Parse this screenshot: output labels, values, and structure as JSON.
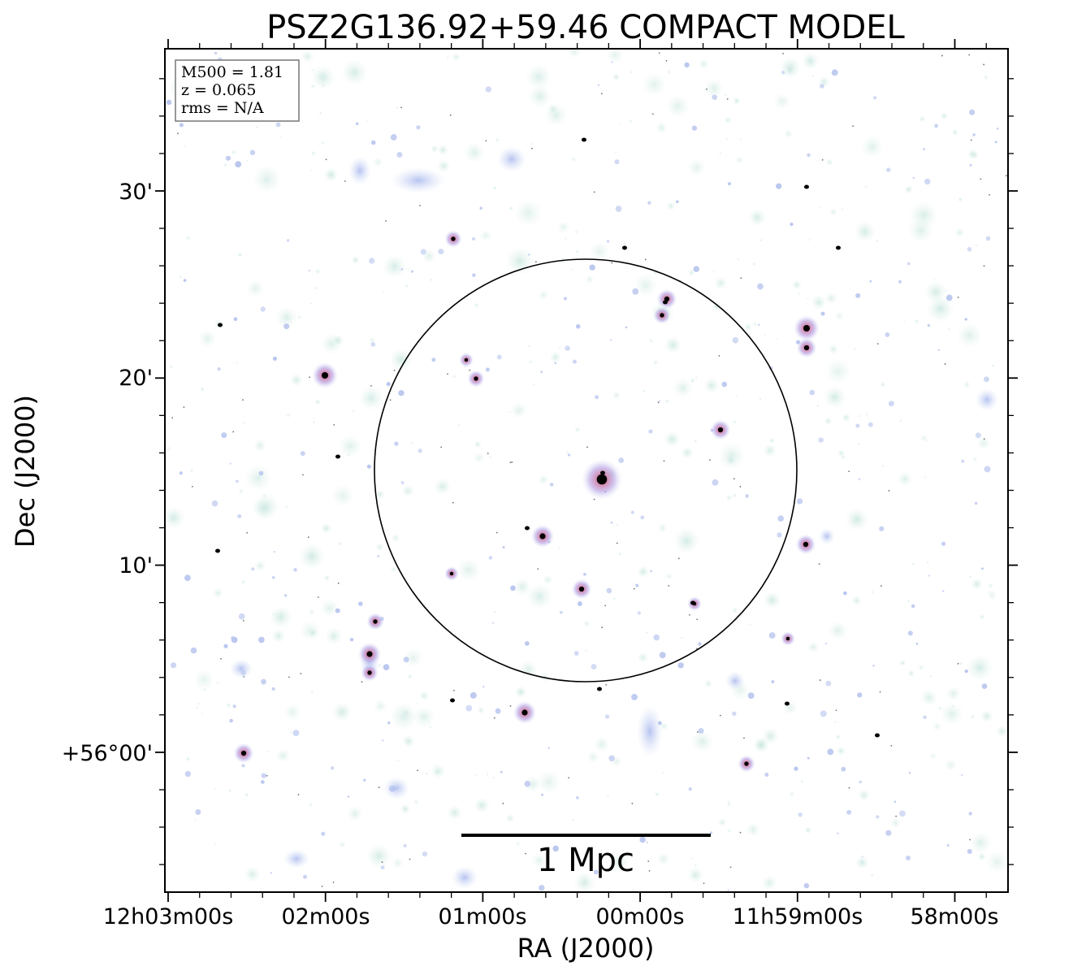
{
  "figure": {
    "title": "PSZ2G136.92+59.46 COMPACT MODEL",
    "xlabel": "RA (J2000)",
    "ylabel": "Dec (J2000)",
    "xticks": [
      "12h03m00s",
      "02m00s",
      "01m00s",
      "00m00s",
      "11h59m00s",
      "58m00s"
    ],
    "yticks": [
      "30'",
      "20'",
      "10'",
      "+56°00'"
    ],
    "scalebar_label": "1 Mpc",
    "info": {
      "m500": "M500 = 1.81",
      "z": "z = 0.065",
      "rms": "rms = N/A"
    }
  },
  "colors": {
    "faint_emission": "#cfe9e2",
    "diffuse_emission": "#b6c2ec",
    "compact_emission": "#e0607a",
    "bright_core": "#000000",
    "circle": "#000000"
  }
}
